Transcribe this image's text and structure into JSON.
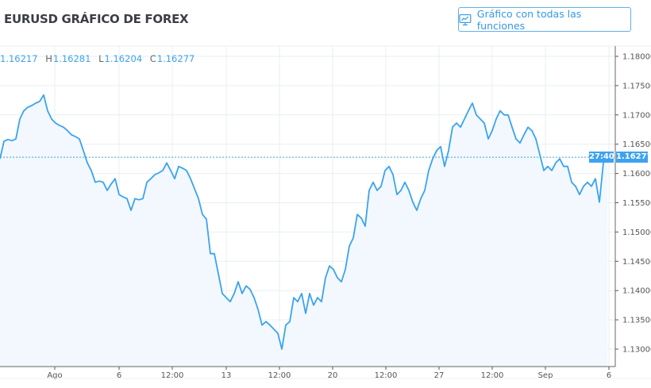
{
  "header": {
    "title": "EURUSD GRÁFICO DE FOREX",
    "full_chart_button": "Gráfico con todas las funciones",
    "button_icon": "chart-monitor-icon"
  },
  "ohlc": {
    "o_label": "",
    "o": "1.16217",
    "h_label": "H",
    "h": "1.16281",
    "l_label": "L",
    "l": "1.16204",
    "c_label": "C",
    "c": "1.16277"
  },
  "colors": {
    "line": "#3ba3ee",
    "fill": "#f2f8fe",
    "grid": "#e9eff3",
    "tag": "#3ea2f0"
  },
  "last_price_tag": "1.16277",
  "countdown_tag": "27:40",
  "chart_data": {
    "type": "area",
    "ylim": [
      1.1285,
      1.1815
    ],
    "y_ticks": [
      "1.18000",
      "1.17500",
      "1.17000",
      "1.16500",
      "1.16000",
      "1.15500",
      "1.15000",
      "1.14500",
      "1.14000",
      "1.13500",
      "1.13000"
    ],
    "x_ticks": [
      "Ago",
      "6",
      "12:00",
      "13",
      "12:00",
      "20",
      "12:00",
      "27",
      "12:00",
      "Sep",
      "6"
    ],
    "last_price": 1.16277,
    "grid": true,
    "values": [
      1.1625,
      1.1655,
      1.1658,
      1.1656,
      1.1659,
      1.1693,
      1.1707,
      1.1713,
      1.1716,
      1.172,
      1.1723,
      1.1734,
      1.1707,
      1.1693,
      1.1686,
      1.1682,
      1.1679,
      1.1673,
      1.1666,
      1.1663,
      1.1659,
      1.1639,
      1.1618,
      1.1605,
      1.1585,
      1.1587,
      1.1585,
      1.1571,
      1.1582,
      1.1591,
      1.1564,
      1.156,
      1.1557,
      1.1537,
      1.1557,
      1.1555,
      1.1557,
      1.1585,
      1.1591,
      1.1598,
      1.1601,
      1.1605,
      1.1618,
      1.1605,
      1.1591,
      1.1612,
      1.1609,
      1.1605,
      1.1591,
      1.1574,
      1.1557,
      1.153,
      1.1522,
      1.1463,
      1.1463,
      1.1429,
      1.1395,
      1.1388,
      1.1381,
      1.1395,
      1.1415,
      1.1395,
      1.1408,
      1.1402,
      1.1388,
      1.1368,
      1.1341,
      1.1347,
      1.1341,
      1.1334,
      1.1327,
      1.13,
      1.1341,
      1.1347,
      1.1388,
      1.1381,
      1.1395,
      1.1361,
      1.1395,
      1.1375,
      1.1388,
      1.1381,
      1.1422,
      1.1442,
      1.1436,
      1.1422,
      1.1415,
      1.1436,
      1.1476,
      1.149,
      1.153,
      1.1524,
      1.151,
      1.1571,
      1.1585,
      1.1571,
      1.1578,
      1.1605,
      1.1612,
      1.1598,
      1.1564,
      1.1571,
      1.1585,
      1.1571,
      1.1551,
      1.1537,
      1.1557,
      1.1571,
      1.1605,
      1.1625,
      1.1639,
      1.1646,
      1.1612,
      1.1639,
      1.1679,
      1.1686,
      1.1679,
      1.1693,
      1.1707,
      1.172,
      1.17,
      1.1693,
      1.1686,
      1.1659,
      1.1673,
      1.1693,
      1.1707,
      1.17,
      1.17,
      1.1679,
      1.1659,
      1.1652,
      1.1666,
      1.1679,
      1.1673,
      1.1659,
      1.1632,
      1.1605,
      1.1612,
      1.1605,
      1.1618,
      1.1625,
      1.1612,
      1.1612,
      1.1585,
      1.1578,
      1.1564,
      1.1578,
      1.1585,
      1.1578,
      1.1591,
      1.1551,
      1.1618,
      1.1628
    ]
  }
}
